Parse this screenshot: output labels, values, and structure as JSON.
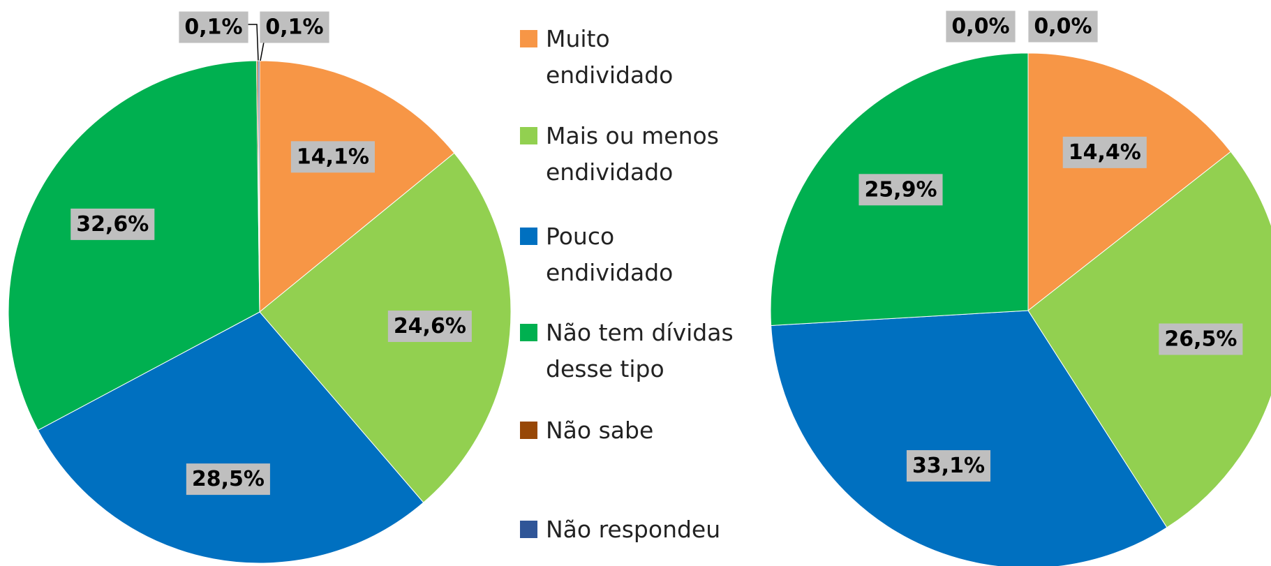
{
  "chart_data": [
    {
      "type": "pie",
      "categories": [
        "Muito endividado",
        "Mais ou menos endividado",
        "Pouco endividado",
        "Não tem dívidas desse tipo",
        "Não sabe",
        "Não respondeu"
      ],
      "colors": [
        "#f79646",
        "#92d050",
        "#0070c0",
        "#00b050",
        "#974706",
        "#2f5597"
      ],
      "values": [
        14.1,
        24.6,
        28.5,
        32.6,
        0.1,
        0.1
      ],
      "value_labels": [
        "14,1%",
        "24,6%",
        "28,5%",
        "32,6%",
        "0,1%",
        "0,1%"
      ]
    },
    {
      "type": "pie",
      "categories": [
        "Muito endividado",
        "Mais ou menos endividado",
        "Pouco endividado",
        "Não tem dívidas desse tipo",
        "Não sabe",
        "Não respondeu"
      ],
      "colors": [
        "#f79646",
        "#92d050",
        "#0070c0",
        "#00b050",
        "#974706",
        "#2f5597"
      ],
      "values": [
        14.4,
        26.5,
        33.1,
        25.9,
        0.0,
        0.0
      ],
      "value_labels": [
        "14,4%",
        "26,5%",
        "33,1%",
        "25,9%",
        "0,0%",
        "0,0%"
      ]
    }
  ]
}
